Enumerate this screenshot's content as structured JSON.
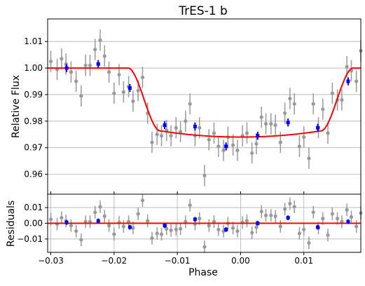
{
  "chart_data": [
    {
      "type": "scatter",
      "panel": "main",
      "title": "TrES-1 b",
      "xlabel": "",
      "ylabel": "Relative Flux",
      "xlim": [
        -0.0305,
        0.019
      ],
      "ylim": [
        0.9525,
        1.0185
      ],
      "xticks": [
        -0.03,
        -0.02,
        -0.01,
        0.0,
        0.01
      ],
      "yticks": [
        0.96,
        0.97,
        0.98,
        0.99,
        1.0,
        1.01
      ],
      "ytick_labels": [
        "0.96",
        "0.97",
        "0.98",
        "0.99",
        "1.00",
        "1.01"
      ],
      "grid": "horizontal",
      "colors": {
        "raw": "#999999",
        "binned": "#0000ff",
        "model": "#ff0000",
        "grid": "#b0b0b0"
      },
      "model_params": {
        "t_contact_outer": 0.0178,
        "t_contact_inner": 0.0127,
        "depth": 0.026
      },
      "series": [
        {
          "kind": "raw",
          "x": [
            -0.03,
            -0.029,
            -0.0283,
            -0.0276,
            -0.0268,
            -0.026,
            -0.0252,
            -0.0245,
            -0.0238,
            -0.023,
            -0.0222,
            -0.0215,
            -0.0208,
            -0.02,
            -0.0192,
            -0.0185,
            -0.0177,
            -0.017,
            -0.0162,
            -0.0155,
            -0.0147,
            -0.014,
            -0.0132,
            -0.0125,
            -0.0117,
            -0.011,
            -0.0102,
            -0.0095,
            -0.0087,
            -0.008,
            -0.0072,
            -0.0065,
            -0.0057,
            -0.005,
            -0.0042,
            -0.0035,
            -0.0027,
            -0.002,
            -0.0012,
            -0.0005,
            0.0003,
            0.001,
            0.0018,
            0.0025,
            0.0033,
            0.004,
            0.0048,
            0.0055,
            0.0063,
            0.007,
            0.0078,
            0.0085,
            0.0093,
            0.01,
            0.0108,
            0.0115,
            0.0123,
            0.013,
            0.0138,
            0.0145,
            0.0153,
            0.016,
            0.0168,
            0.0175,
            0.0183,
            0.019
          ],
          "y": [
            1.0025,
            0.9995,
            1.0035,
            1.0015,
            0.9985,
            0.995,
            0.9895,
            1.001,
            1.001,
            1.007,
            1.0105,
            1.0045,
            0.9985,
            0.9905,
            0.9975,
            0.991,
            0.993,
            0.9875,
            0.9915,
            0.9965,
            0.983,
            0.972,
            0.975,
            0.9745,
            0.9765,
            0.9745,
            0.9775,
            0.976,
            0.98,
            0.9865,
            0.9745,
            0.9775,
            0.9595,
            0.973,
            0.9755,
            0.9705,
            0.969,
            0.974,
            0.971,
            0.969,
            0.9745,
            0.9755,
            0.968,
            0.9715,
            0.9815,
            0.979,
            0.979,
            0.9785,
            0.972,
            0.983,
            0.9885,
            0.9865,
            0.9705,
            0.974,
            0.966,
            0.9865,
            0.9775,
            0.9845,
            0.9755,
            0.9905,
            0.988,
            0.988,
            1.0005,
            0.999,
            0.995,
            1.0065
          ],
          "yerr": [
            0.004,
            0.004,
            0.004,
            0.004,
            0.004,
            0.004,
            0.004,
            0.004,
            0.004,
            0.004,
            0.004,
            0.004,
            0.004,
            0.004,
            0.004,
            0.004,
            0.004,
            0.004,
            0.004,
            0.004,
            0.004,
            0.004,
            0.004,
            0.004,
            0.004,
            0.004,
            0.004,
            0.004,
            0.004,
            0.004,
            0.004,
            0.004,
            0.004,
            0.004,
            0.004,
            0.004,
            0.004,
            0.004,
            0.004,
            0.004,
            0.004,
            0.004,
            0.004,
            0.004,
            0.004,
            0.004,
            0.004,
            0.004,
            0.004,
            0.004,
            0.004,
            0.004,
            0.004,
            0.004,
            0.004,
            0.004,
            0.004,
            0.004,
            0.004,
            0.004,
            0.004,
            0.004,
            0.004,
            0.004,
            0.004,
            0.004
          ]
        },
        {
          "kind": "binned",
          "x": [
            -0.0275,
            -0.0225,
            -0.0175,
            -0.012,
            -0.0072,
            -0.0023,
            0.0027,
            0.0075,
            0.0122,
            0.017
          ],
          "y": [
            1.0,
            1.0015,
            0.9925,
            0.9785,
            0.978,
            0.9705,
            0.9745,
            0.9795,
            0.9775,
            0.995
          ],
          "yerr": [
            0.0015,
            0.0015,
            0.0015,
            0.0015,
            0.0015,
            0.0015,
            0.0015,
            0.0015,
            0.0015,
            0.0015
          ]
        }
      ]
    },
    {
      "type": "scatter",
      "panel": "residuals",
      "title": "",
      "xlabel": "Phase",
      "ylabel": "Residuals",
      "xlim": [
        -0.0305,
        0.019
      ],
      "ylim": [
        -0.0185,
        0.0185
      ],
      "xticks": [
        -0.03,
        -0.02,
        -0.01,
        0.0,
        0.01
      ],
      "xtick_labels": [
        "−0.03",
        "−0.02",
        "−0.01",
        "0.00",
        "0.01"
      ],
      "yticks": [
        -0.01,
        0.0,
        0.01
      ],
      "ytick_labels": [
        "−0.01",
        "0.00",
        "0.01"
      ],
      "grid": "both",
      "series": [
        {
          "kind": "raw",
          "x": [
            -0.03,
            -0.029,
            -0.0283,
            -0.0276,
            -0.0268,
            -0.026,
            -0.0252,
            -0.0245,
            -0.0238,
            -0.023,
            -0.0222,
            -0.0215,
            -0.0208,
            -0.02,
            -0.0192,
            -0.0185,
            -0.0177,
            -0.017,
            -0.0162,
            -0.0155,
            -0.0147,
            -0.014,
            -0.0132,
            -0.0125,
            -0.0117,
            -0.011,
            -0.0102,
            -0.0095,
            -0.0087,
            -0.008,
            -0.0072,
            -0.0065,
            -0.0057,
            -0.005,
            -0.0042,
            -0.0035,
            -0.0027,
            -0.002,
            -0.0012,
            -0.0005,
            0.0003,
            0.001,
            0.0018,
            0.0025,
            0.0033,
            0.004,
            0.0048,
            0.0055,
            0.0063,
            0.007,
            0.0078,
            0.0085,
            0.0093,
            0.01,
            0.0108,
            0.0115,
            0.0123,
            0.013,
            0.0138,
            0.0145,
            0.0153,
            0.016,
            0.0168,
            0.0175,
            0.0183,
            0.019
          ],
          "y": [
            0.0025,
            -0.0005,
            0.0035,
            0.0015,
            -0.0015,
            -0.005,
            -0.0105,
            0.001,
            0.001,
            0.007,
            0.0105,
            0.0045,
            -0.0015,
            -0.007,
            0.0005,
            -0.002,
            0.001,
            -0.003,
            0.006,
            0.0145,
            0.0015,
            -0.0095,
            -0.0065,
            -0.007,
            -0.0035,
            -0.0045,
            -0.004,
            -0.0035,
            0.001,
            0.0115,
            -0.0005,
            0.003,
            -0.015,
            -0.0015,
            0.001,
            -0.004,
            -0.005,
            0.0,
            -0.003,
            -0.005,
            0.0005,
            0.0015,
            -0.006,
            -0.0025,
            0.0075,
            0.005,
            0.005,
            0.0045,
            -0.002,
            0.009,
            0.0125,
            0.0105,
            -0.0065,
            -0.004,
            -0.0125,
            0.007,
            -0.003,
            0.003,
            -0.0075,
            0.006,
            0.003,
            0.001,
            0.0085,
            0.004,
            -0.002,
            0.0065
          ],
          "yerr": [
            0.004,
            0.004,
            0.004,
            0.004,
            0.004,
            0.004,
            0.004,
            0.004,
            0.004,
            0.004,
            0.004,
            0.004,
            0.004,
            0.004,
            0.004,
            0.004,
            0.004,
            0.004,
            0.004,
            0.004,
            0.004,
            0.004,
            0.004,
            0.004,
            0.004,
            0.004,
            0.004,
            0.004,
            0.004,
            0.004,
            0.004,
            0.004,
            0.004,
            0.004,
            0.004,
            0.004,
            0.004,
            0.004,
            0.004,
            0.004,
            0.004,
            0.004,
            0.004,
            0.004,
            0.004,
            0.004,
            0.004,
            0.004,
            0.004,
            0.004,
            0.004,
            0.004,
            0.004,
            0.004,
            0.004,
            0.004,
            0.004,
            0.004,
            0.004,
            0.004,
            0.004,
            0.004,
            0.004,
            0.004,
            0.004,
            0.004
          ]
        },
        {
          "kind": "binned",
          "x": [
            -0.0275,
            -0.0225,
            -0.0175,
            -0.012,
            -0.0072,
            -0.0023,
            0.0027,
            0.0075,
            0.0122,
            0.017
          ],
          "y": [
            0.0005,
            0.0015,
            -0.0025,
            -0.0015,
            0.0025,
            -0.004,
            0.0,
            0.0035,
            -0.0025,
            0.001
          ],
          "yerr": [
            0.0015,
            0.0015,
            0.0015,
            0.0015,
            0.0015,
            0.0015,
            0.0015,
            0.0015,
            0.0015,
            0.0015
          ]
        }
      ]
    }
  ]
}
